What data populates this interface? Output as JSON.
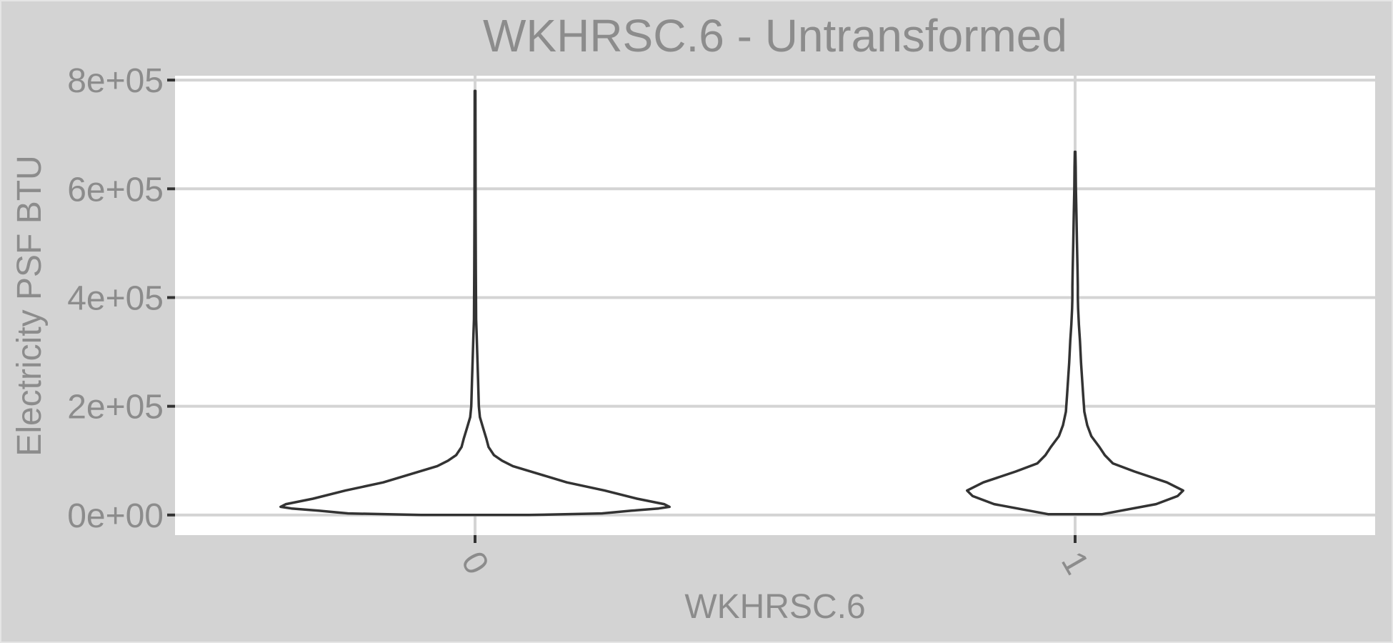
{
  "colors": {
    "background": "#d3d3d3",
    "panel": "#ffffff",
    "gridline": "#d4d4d4",
    "text": "#8c8c8c",
    "violin_outline": "#333333",
    "violin_fill": "#ffffff"
  },
  "chart_data": {
    "type": "violin",
    "title": "WKHRSC.6 - Untransformed",
    "xlabel": "WKHRSC.6",
    "ylabel": "Electricity PSF BTU",
    "categories": [
      "0",
      "1"
    ],
    "x_tick_rotation_deg": 60,
    "ylim": [
      -37000,
      808000
    ],
    "y_ticks": [
      0,
      200000,
      400000,
      600000,
      800000
    ],
    "y_tick_labels": [
      "0e+00",
      "2e+05",
      "4e+05",
      "6e+05",
      "8e+05"
    ],
    "grid": true,
    "legend": "none",
    "violins": [
      {
        "category": "0",
        "min": 0,
        "max": 780000,
        "max_density_at": 15000,
        "profile_note": "half-width as fraction of category slot; y in data units",
        "profile": [
          [
            0,
            0.2
          ],
          [
            3000,
            0.47
          ],
          [
            8000,
            0.58
          ],
          [
            12000,
            0.68
          ],
          [
            15000,
            0.72
          ],
          [
            20000,
            0.7
          ],
          [
            30000,
            0.6
          ],
          [
            45000,
            0.48
          ],
          [
            60000,
            0.34
          ],
          [
            75000,
            0.24
          ],
          [
            90000,
            0.14
          ],
          [
            100000,
            0.1
          ],
          [
            110000,
            0.07
          ],
          [
            125000,
            0.05
          ],
          [
            140000,
            0.042
          ],
          [
            160000,
            0.03
          ],
          [
            180000,
            0.018
          ],
          [
            200000,
            0.014
          ],
          [
            250000,
            0.011
          ],
          [
            300000,
            0.008
          ],
          [
            330000,
            0.006
          ],
          [
            360000,
            0.004
          ],
          [
            450000,
            0.003
          ],
          [
            550000,
            0.002
          ],
          [
            700000,
            0.0015
          ],
          [
            780000,
            0.0012
          ]
        ]
      },
      {
        "category": "1",
        "min": 1500,
        "max": 668000,
        "max_density_at": 45000,
        "profile_note": "half-width as fraction of category slot; y in data units",
        "profile": [
          [
            1500,
            0.1
          ],
          [
            20000,
            0.3
          ],
          [
            35000,
            0.38
          ],
          [
            45000,
            0.4
          ],
          [
            60000,
            0.34
          ],
          [
            80000,
            0.22
          ],
          [
            95000,
            0.14
          ],
          [
            110000,
            0.11
          ],
          [
            125000,
            0.09
          ],
          [
            145000,
            0.06
          ],
          [
            165000,
            0.045
          ],
          [
            190000,
            0.034
          ],
          [
            220000,
            0.03
          ],
          [
            250000,
            0.026
          ],
          [
            280000,
            0.022
          ],
          [
            320000,
            0.018
          ],
          [
            350000,
            0.014
          ],
          [
            380000,
            0.011
          ],
          [
            400000,
            0.01
          ],
          [
            420000,
            0.01
          ],
          [
            450000,
            0.009
          ],
          [
            500000,
            0.007
          ],
          [
            550000,
            0.005
          ],
          [
            600000,
            0.003
          ],
          [
            640000,
            0.002
          ],
          [
            668000,
            0.001
          ]
        ]
      }
    ]
  }
}
